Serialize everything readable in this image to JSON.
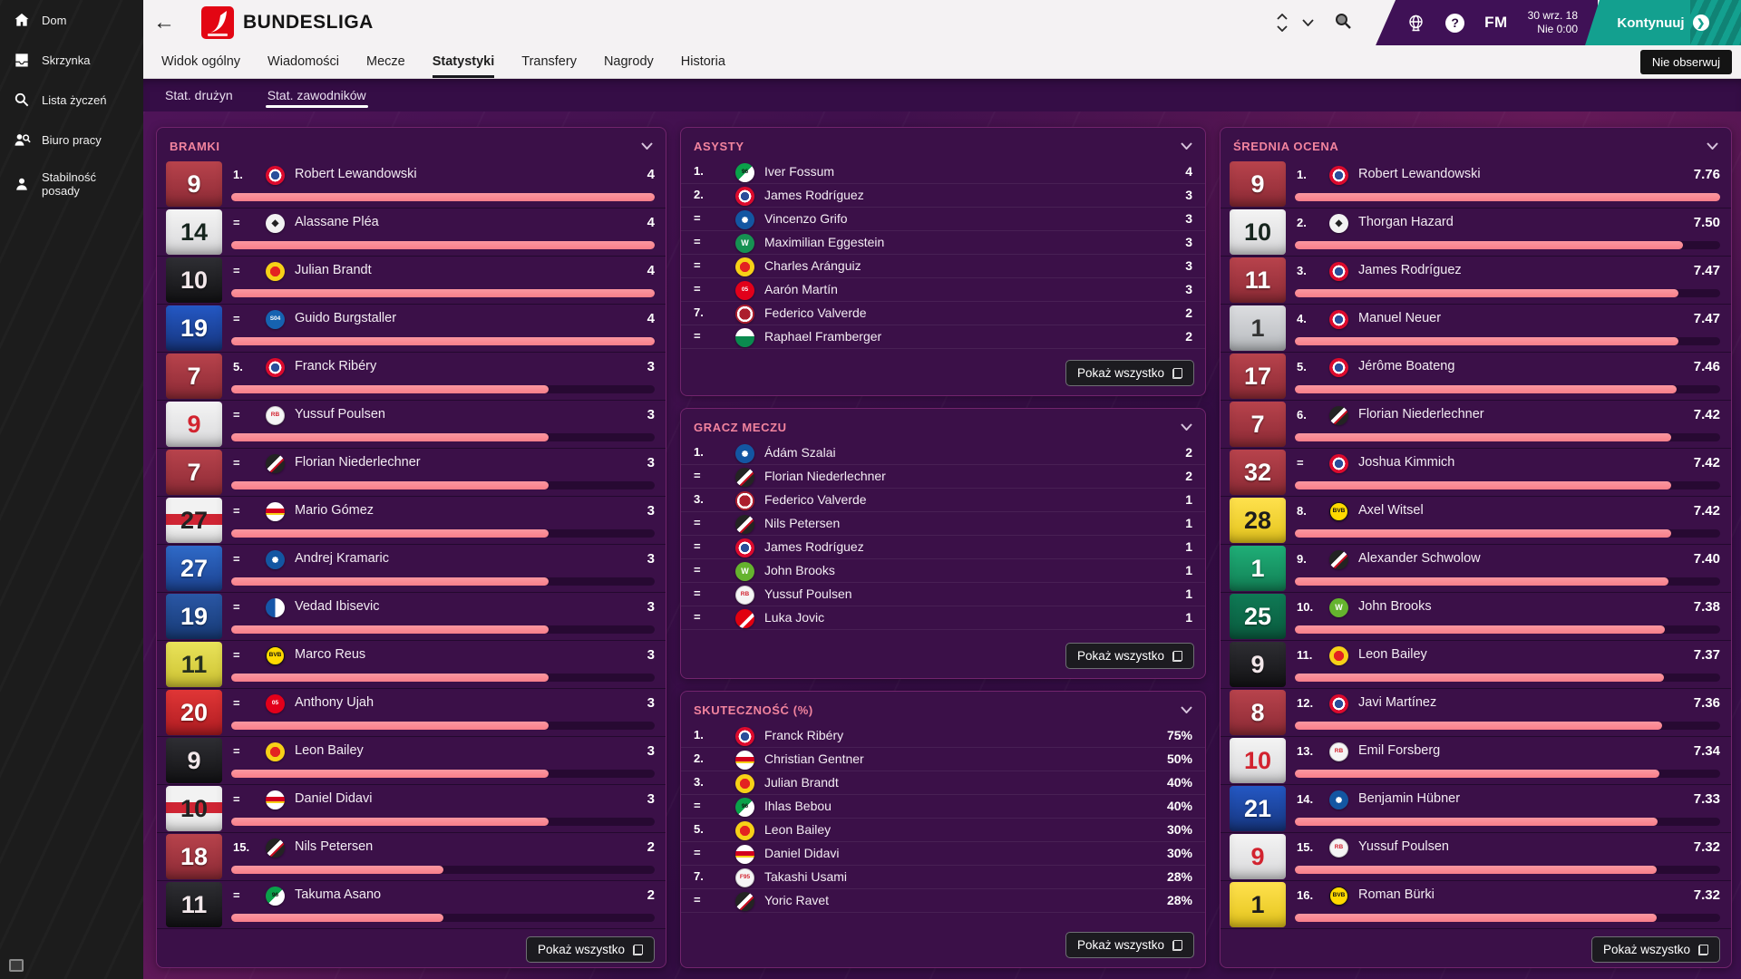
{
  "sidebar": {
    "items": [
      {
        "label": "Dom",
        "icon": "home-icon"
      },
      {
        "label": "Skrzynka",
        "icon": "inbox-icon"
      },
      {
        "label": "Lista życzeń",
        "icon": "wishlist-icon"
      },
      {
        "label": "Biuro pracy",
        "icon": "job-centre-icon"
      },
      {
        "label": "Stabilność posady",
        "icon": "job-security-icon"
      }
    ]
  },
  "header": {
    "title": "BUNDESLIGA",
    "date_line1": "30 wrz. 18",
    "date_line2": "Nie 0:00",
    "fm_label": "FM",
    "continue_label": "Kontynuuj",
    "unfollow_label": "Nie obserwuj"
  },
  "tabs": [
    "Widok ogólny",
    "Wiadomości",
    "Mecze",
    "Statystyki",
    "Transfery",
    "Nagrody",
    "Historia"
  ],
  "active_tab": "Statystyki",
  "subtabs": [
    "Stat. drużyn",
    "Stat. zawodników"
  ],
  "active_subtab": "Stat. zawodników",
  "labels": {
    "show_all": "Pokaż wszystko"
  },
  "colors": {
    "accent_pink": "#f2849e",
    "bar_fill": "#f98f98",
    "continue_teal": "#13a08f"
  },
  "panels": {
    "goals": {
      "title": "BRAMKI",
      "max": 4,
      "rows": [
        {
          "rank": "1.",
          "num": "9",
          "jersey": "red",
          "club": "bayern",
          "name": "Robert Lewandowski",
          "value": "4"
        },
        {
          "rank": "=",
          "num": "14",
          "jersey": "white",
          "club": "gladbach",
          "name": "Alassane Pléa",
          "value": "4"
        },
        {
          "rank": "=",
          "num": "10",
          "jersey": "black",
          "club": "leverkusen",
          "name": "Julian Brandt",
          "value": "4"
        },
        {
          "rank": "=",
          "num": "19",
          "jersey": "blue",
          "club": "schalke",
          "name": "Guido Burgstaller",
          "value": "4"
        },
        {
          "rank": "5.",
          "num": "7",
          "jersey": "red",
          "club": "bayern",
          "name": "Franck Ribéry",
          "value": "3"
        },
        {
          "rank": "=",
          "num": "9",
          "jersey": "whiterednum",
          "club": "leipzig",
          "name": "Yussuf Poulsen",
          "value": "3"
        },
        {
          "rank": "=",
          "num": "7",
          "jersey": "red",
          "club": "freiburg",
          "name": "Florian Niederlechner",
          "value": "3"
        },
        {
          "rank": "=",
          "num": "27",
          "jersey": "redband",
          "club": "stuttgart",
          "name": "Mario Gómez",
          "value": "3"
        },
        {
          "rank": "=",
          "num": "27",
          "jersey": "midblue",
          "club": "hoffenheim",
          "name": "Andrej Kramaric",
          "value": "3"
        },
        {
          "rank": "=",
          "num": "19",
          "jersey": "herthablue",
          "club": "hertha",
          "name": "Vedad Ibisevic",
          "value": "3"
        },
        {
          "rank": "=",
          "num": "11",
          "jersey": "yellow",
          "club": "dortmund",
          "name": "Marco Reus",
          "value": "3"
        },
        {
          "rank": "=",
          "num": "20",
          "jersey": "brightred",
          "club": "mainz",
          "name": "Anthony Ujah",
          "value": "3"
        },
        {
          "rank": "=",
          "num": "9",
          "jersey": "black",
          "club": "leverkusen",
          "name": "Leon Bailey",
          "value": "3"
        },
        {
          "rank": "=",
          "num": "10",
          "jersey": "redband",
          "club": "stuttgart",
          "name": "Daniel Didavi",
          "value": "3"
        },
        {
          "rank": "15.",
          "num": "18",
          "jersey": "red",
          "club": "freiburg",
          "name": "Nils Petersen",
          "value": "2"
        },
        {
          "rank": "=",
          "num": "11",
          "jersey": "black",
          "club": "hannover",
          "name": "Takuma Asano",
          "value": "2"
        }
      ]
    },
    "assists": {
      "title": "ASYSTY",
      "rows": [
        {
          "rank": "1.",
          "club": "hannover",
          "name": "Iver Fossum",
          "value": "4"
        },
        {
          "rank": "2.",
          "club": "bayern",
          "name": "James Rodríguez",
          "value": "3"
        },
        {
          "rank": "=",
          "club": "hoffenheim",
          "name": "Vincenzo Grifo",
          "value": "3"
        },
        {
          "rank": "=",
          "club": "bremen",
          "name": "Maximilian Eggestein",
          "value": "3"
        },
        {
          "rank": "=",
          "club": "leverkusen",
          "name": "Charles Aránguiz",
          "value": "3"
        },
        {
          "rank": "=",
          "club": "mainz",
          "name": "Aarón Martín",
          "value": "3"
        },
        {
          "rank": "7.",
          "club": "nuernberg",
          "name": "Federico Valverde",
          "value": "2"
        },
        {
          "rank": "=",
          "club": "augsburg",
          "name": "Raphael Framberger",
          "value": "2"
        }
      ]
    },
    "motm": {
      "title": "GRACZ MECZU",
      "rows": [
        {
          "rank": "1.",
          "club": "hoffenheim",
          "name": "Ádám Szalai",
          "value": "2"
        },
        {
          "rank": "=",
          "club": "freiburg",
          "name": "Florian Niederlechner",
          "value": "2"
        },
        {
          "rank": "3.",
          "club": "nuernberg",
          "name": "Federico Valverde",
          "value": "1"
        },
        {
          "rank": "=",
          "club": "freiburg",
          "name": "Nils Petersen",
          "value": "1"
        },
        {
          "rank": "=",
          "club": "bayern",
          "name": "James Rodríguez",
          "value": "1"
        },
        {
          "rank": "=",
          "club": "wolfsburg",
          "name": "John Brooks",
          "value": "1"
        },
        {
          "rank": "=",
          "club": "leipzig",
          "name": "Yussuf Poulsen",
          "value": "1"
        },
        {
          "rank": "=",
          "club": "frankfurt",
          "name": "Luka Jovic",
          "value": "1"
        }
      ]
    },
    "conversion": {
      "title": "SKUTECZNOŚĆ (%)",
      "rows": [
        {
          "rank": "1.",
          "club": "bayern",
          "name": "Franck Ribéry",
          "value": "75%"
        },
        {
          "rank": "2.",
          "club": "stuttgart",
          "name": "Christian Gentner",
          "value": "50%"
        },
        {
          "rank": "3.",
          "club": "leverkusen",
          "name": "Julian Brandt",
          "value": "40%"
        },
        {
          "rank": "=",
          "club": "hannover",
          "name": "Ihlas Bebou",
          "value": "40%"
        },
        {
          "rank": "5.",
          "club": "leverkusen",
          "name": "Leon Bailey",
          "value": "30%"
        },
        {
          "rank": "=",
          "club": "stuttgart",
          "name": "Daniel Didavi",
          "value": "30%"
        },
        {
          "rank": "7.",
          "club": "duesseldorf",
          "name": "Takashi Usami",
          "value": "28%"
        },
        {
          "rank": "=",
          "club": "freiburg",
          "name": "Yoric Ravet",
          "value": "28%"
        }
      ]
    },
    "ratings": {
      "title": "ŚREDNIA OCENA",
      "rows": [
        {
          "rank": "1.",
          "num": "9",
          "jersey": "red",
          "club": "bayern",
          "name": "Robert Lewandowski",
          "value": "7.76"
        },
        {
          "rank": "2.",
          "num": "10",
          "jersey": "white",
          "club": "gladbach",
          "name": "Thorgan Hazard",
          "value": "7.50"
        },
        {
          "rank": "3.",
          "num": "11",
          "jersey": "red",
          "club": "bayern",
          "name": "James Rodríguez",
          "value": "7.47"
        },
        {
          "rank": "4.",
          "num": "1",
          "jersey": "grey",
          "club": "bayern",
          "name": "Manuel Neuer",
          "value": "7.47"
        },
        {
          "rank": "5.",
          "num": "17",
          "jersey": "red",
          "club": "bayern",
          "name": "Jérôme Boateng",
          "value": "7.46"
        },
        {
          "rank": "6.",
          "num": "7",
          "jersey": "red",
          "club": "freiburg",
          "name": "Florian Niederlechner",
          "value": "7.42"
        },
        {
          "rank": "=",
          "num": "32",
          "jersey": "red",
          "club": "bayern",
          "name": "Joshua Kimmich",
          "value": "7.42"
        },
        {
          "rank": "8.",
          "num": "28",
          "jersey": "bvbyellow",
          "club": "dortmund",
          "name": "Axel Witsel",
          "value": "7.42"
        },
        {
          "rank": "9.",
          "num": "1",
          "jersey": "green",
          "club": "freiburg",
          "name": "Alexander Schwolow",
          "value": "7.40"
        },
        {
          "rank": "10.",
          "num": "25",
          "jersey": "darkgreen",
          "club": "wolfsburg",
          "name": "John Brooks",
          "value": "7.38"
        },
        {
          "rank": "11.",
          "num": "9",
          "jersey": "black",
          "club": "leverkusen",
          "name": "Leon Bailey",
          "value": "7.37"
        },
        {
          "rank": "12.",
          "num": "8",
          "jersey": "red",
          "club": "bayern",
          "name": "Javi Martínez",
          "value": "7.36"
        },
        {
          "rank": "13.",
          "num": "10",
          "jersey": "whiterednum",
          "club": "leipzig",
          "name": "Emil Forsberg",
          "value": "7.34"
        },
        {
          "rank": "14.",
          "num": "21",
          "jersey": "blue",
          "club": "hoffenheim",
          "name": "Benjamin Hübner",
          "value": "7.33"
        },
        {
          "rank": "15.",
          "num": "9",
          "jersey": "whiterednum",
          "club": "leipzig",
          "name": "Yussuf Poulsen",
          "value": "7.32"
        },
        {
          "rank": "16.",
          "num": "1",
          "jersey": "bvbyellow",
          "club": "dortmund",
          "name": "Roman Bürki",
          "value": "7.32"
        }
      ]
    }
  }
}
